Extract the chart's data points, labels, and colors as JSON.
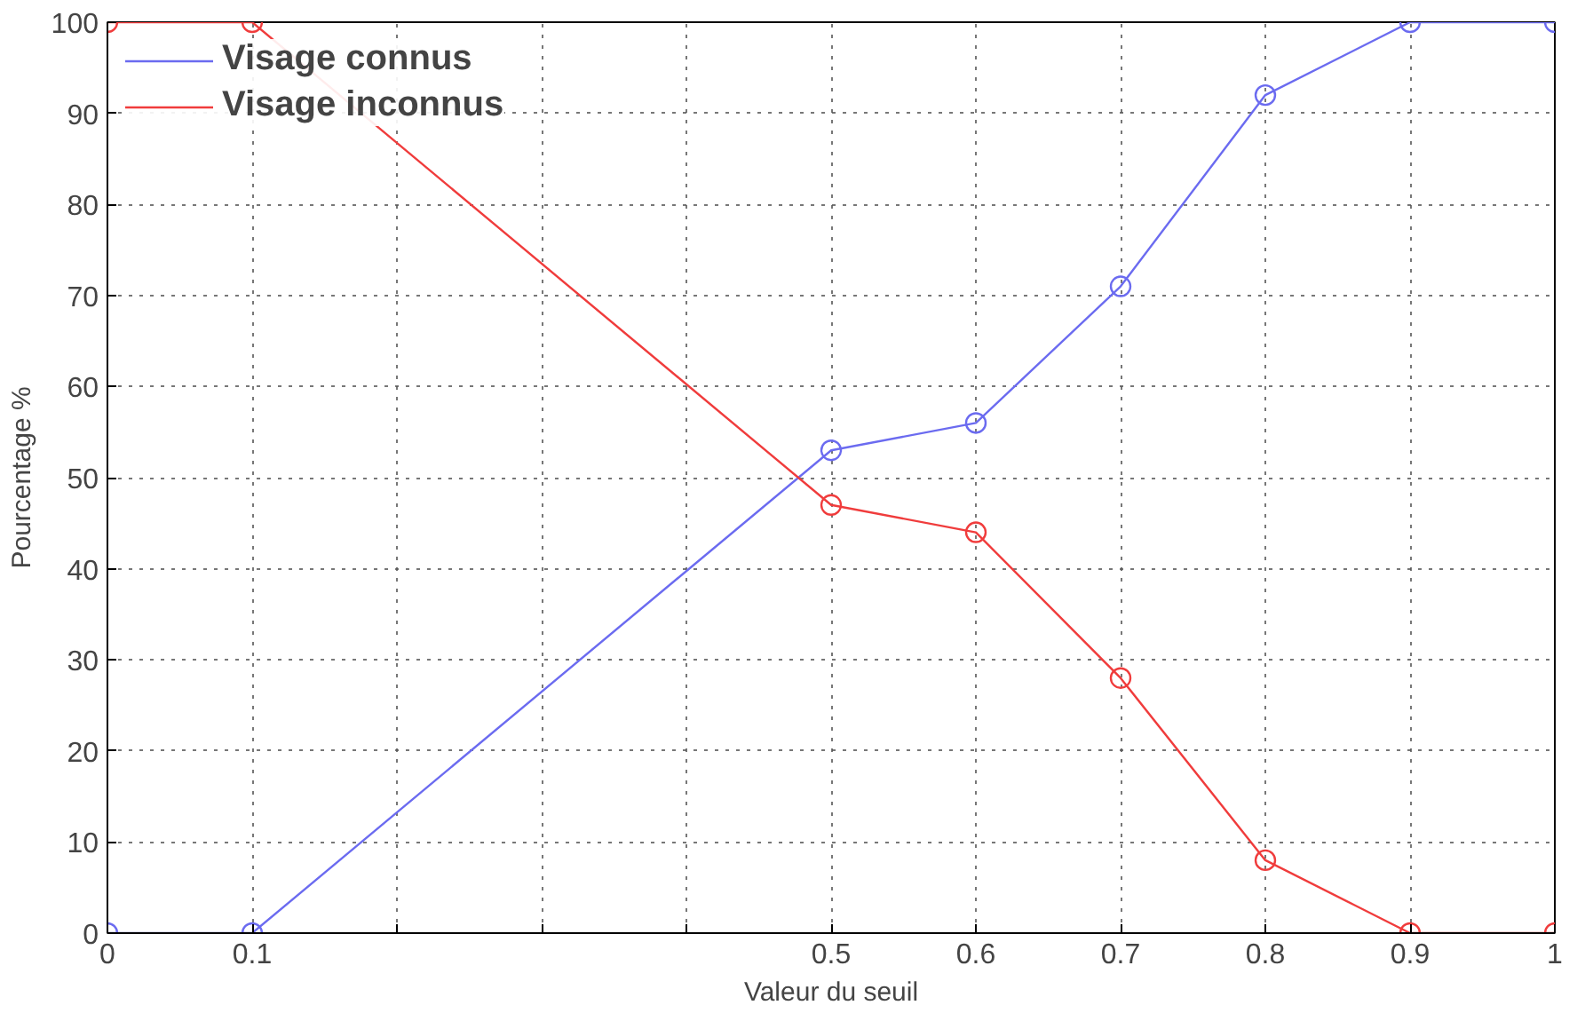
{
  "chart_data": {
    "type": "line",
    "xlabel": "Valeur du seuil",
    "ylabel": "Pourcentage %",
    "x": [
      0,
      0.1,
      0.5,
      0.6,
      0.7,
      0.8,
      0.9,
      1
    ],
    "series": [
      {
        "name": "Visage connus",
        "color": "#6b6bf0",
        "values": [
          0,
          0,
          53,
          56,
          71,
          92,
          100,
          100
        ]
      },
      {
        "name": "Visage inconnus",
        "color": "#f03c3c",
        "values": [
          100,
          100,
          47,
          44,
          28,
          8,
          0,
          0
        ]
      }
    ],
    "xlim": [
      0,
      1
    ],
    "ylim": [
      0,
      100
    ],
    "xticks": [
      0,
      0.1,
      {
        "value": 0.2,
        "label": null
      },
      {
        "value": 0.3,
        "label": null
      },
      {
        "value": 0.4,
        "label": null
      },
      0.5,
      0.6,
      0.7,
      0.8,
      0.9,
      1
    ],
    "yticks": [
      0,
      10,
      20,
      30,
      40,
      50,
      60,
      70,
      80,
      90,
      100
    ],
    "grid": true,
    "legend": "top left",
    "marker": "circle",
    "line_style": "solid"
  }
}
